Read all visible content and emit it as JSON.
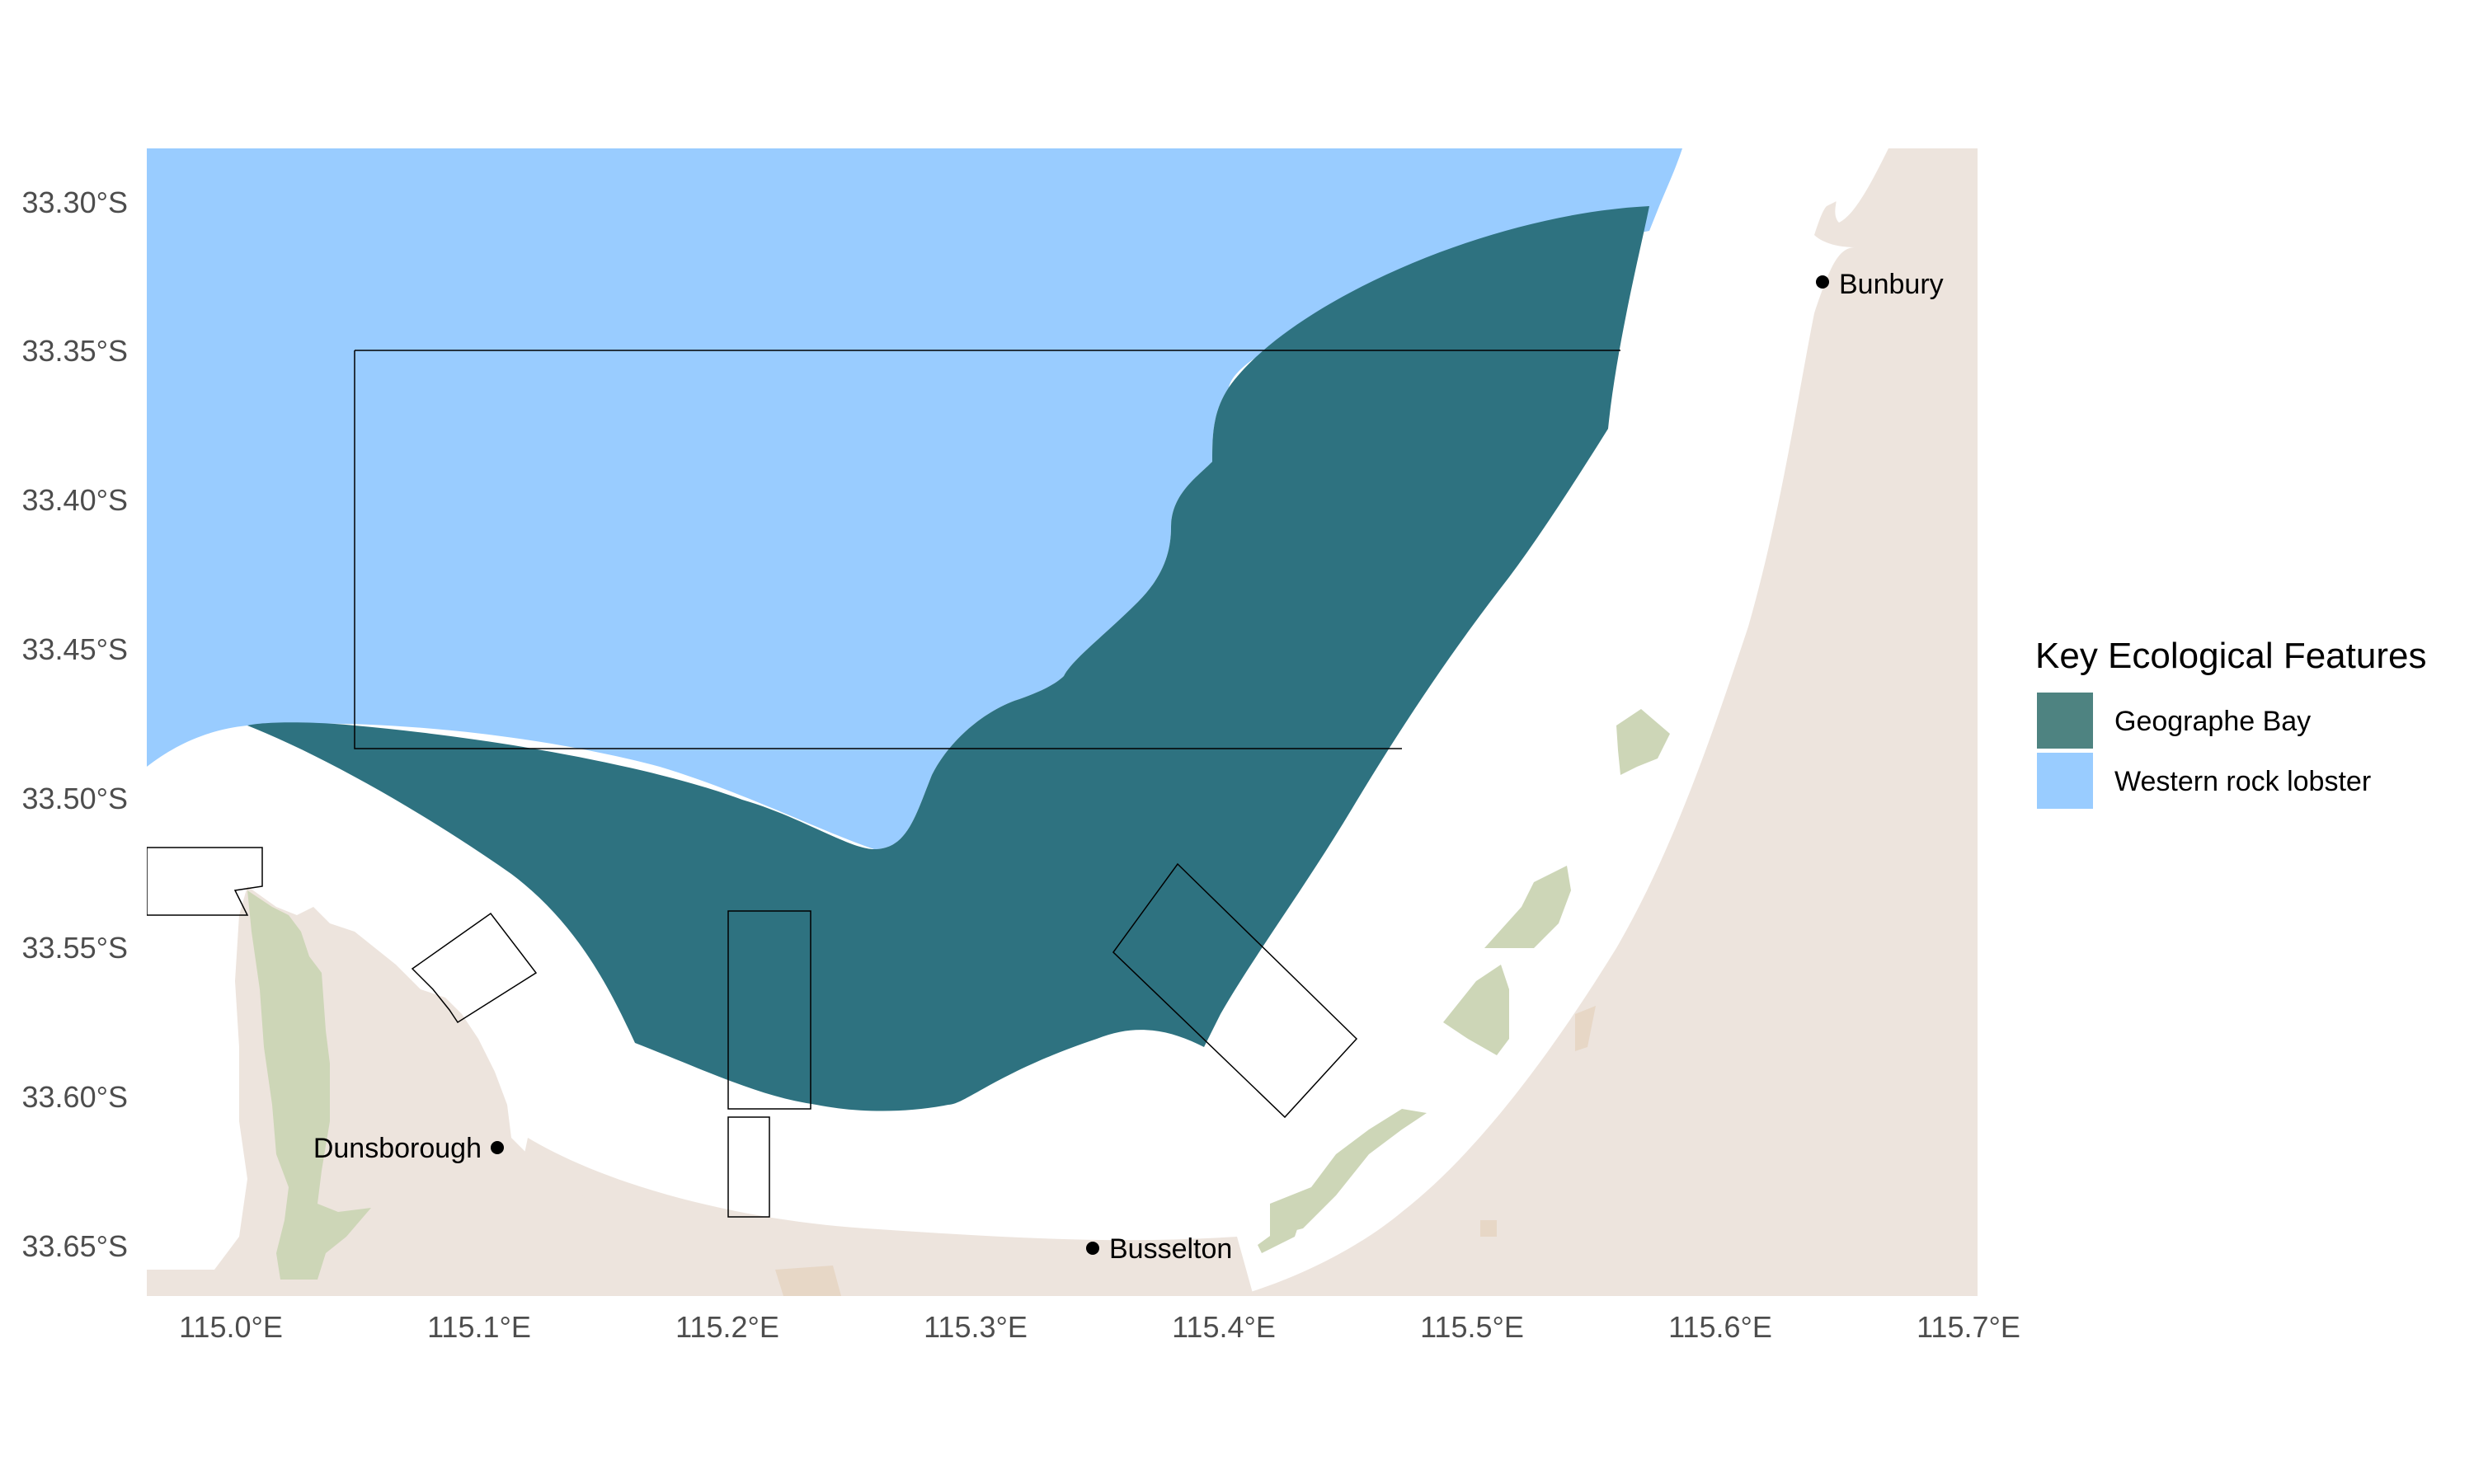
{
  "axes": {
    "x_ticks": [
      "115.0°E",
      "115.1°E",
      "115.2°E",
      "115.3°E",
      "115.4°E",
      "115.5°E",
      "115.6°E",
      "115.7°E"
    ],
    "y_ticks": [
      "33.30°S",
      "33.35°S",
      "33.40°S",
      "33.45°S",
      "33.50°S",
      "33.55°S",
      "33.60°S",
      "33.65°S"
    ]
  },
  "places": [
    {
      "name": "Bunbury"
    },
    {
      "name": "Dunsborough"
    },
    {
      "name": "Busselton"
    }
  ],
  "legend": {
    "title": "Key Ecological Features",
    "items": [
      {
        "label": "Geographe Bay",
        "color": "#4e8381"
      },
      {
        "label": "Western rock lobster",
        "color": "#99ccff"
      }
    ]
  },
  "colors": {
    "land": "#ede4dd",
    "reserve": "#cdd6b7",
    "urban": "#e7d7c6",
    "geographe_bay": "#2e7280",
    "western_rock_lobster": "#99ccff",
    "zone_outline": "#000000"
  }
}
